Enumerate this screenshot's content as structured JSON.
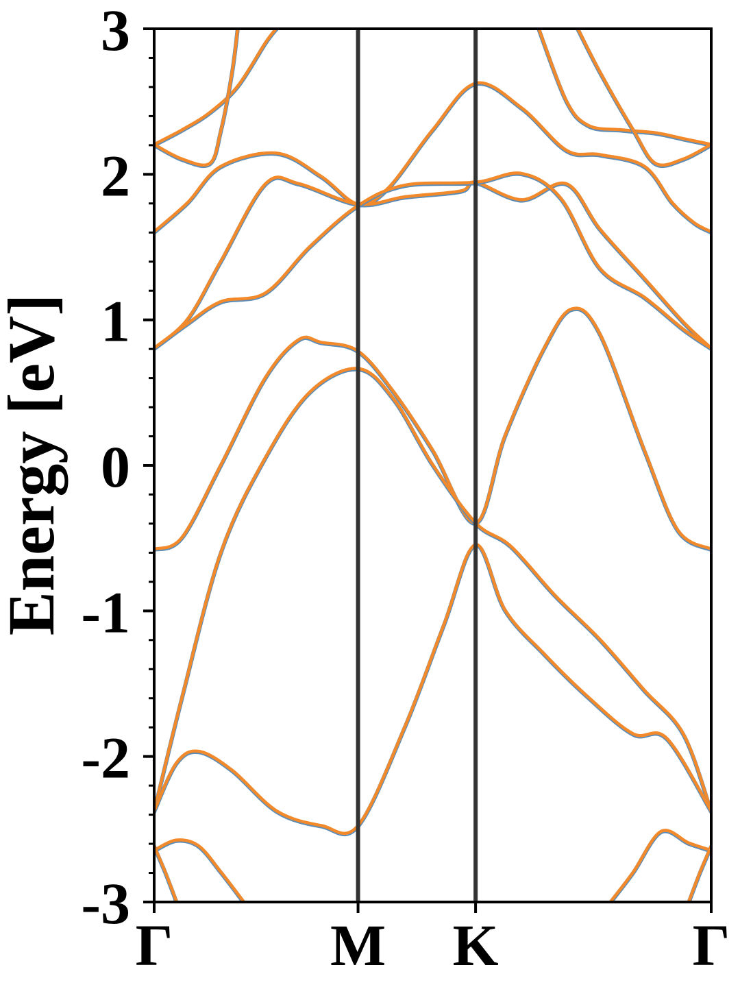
{
  "chart_data": {
    "type": "line",
    "title": "",
    "xlabel": "",
    "ylabel": "Energy [eV]",
    "ylim": [
      -3,
      3
    ],
    "xlim": [
      0,
      1
    ],
    "x_ticks": [
      {
        "label": "Γ",
        "x": 0.0
      },
      {
        "label": "M",
        "x": 0.366
      },
      {
        "label": "K",
        "x": 0.577
      },
      {
        "label": "Γ",
        "x": 1.0
      }
    ],
    "y_ticks": [
      {
        "label": "-3",
        "value": -3
      },
      {
        "label": "-2",
        "value": -2
      },
      {
        "label": "-1",
        "value": -1
      },
      {
        "label": "0",
        "value": 0
      },
      {
        "label": "1",
        "value": 1
      },
      {
        "label": "2",
        "value": 2
      },
      {
        "label": "3",
        "value": 3
      }
    ],
    "y_minor_step": 0.2,
    "symmetry_lines": [
      0.366,
      0.577
    ],
    "grid": false,
    "legend": "none",
    "colors": {
      "primary": "#5b8db8",
      "overlay": "#f28a2c",
      "vline": "#333333"
    },
    "series": [
      {
        "points": [
          [
            0,
            2.2
          ],
          [
            0.05,
            2.3
          ],
          [
            0.1,
            2.42
          ],
          [
            0.15,
            2.6
          ],
          [
            0.2,
            2.9
          ],
          [
            0.22,
            3.0
          ]
        ]
      },
      {
        "points": [
          [
            0,
            2.2
          ],
          [
            0.05,
            2.1
          ],
          [
            0.1,
            2.07
          ],
          [
            0.12,
            2.3
          ],
          [
            0.14,
            2.7
          ],
          [
            0.15,
            3.0
          ]
        ]
      },
      {
        "points": [
          [
            0,
            1.6
          ],
          [
            0.06,
            1.8
          ],
          [
            0.12,
            2.05
          ],
          [
            0.22,
            2.14
          ],
          [
            0.3,
            1.98
          ],
          [
            0.366,
            1.79
          ],
          [
            0.42,
            1.9
          ],
          [
            0.5,
            2.3
          ],
          [
            0.577,
            2.62
          ],
          [
            0.66,
            2.45
          ],
          [
            0.74,
            2.16
          ],
          [
            0.8,
            2.13
          ],
          [
            0.88,
            2.05
          ],
          [
            0.93,
            1.8
          ],
          [
            0.97,
            1.66
          ],
          [
            1.0,
            1.6
          ]
        ]
      },
      {
        "points": [
          [
            0,
            0.8
          ],
          [
            0.06,
            1.0
          ],
          [
            0.12,
            1.4
          ],
          [
            0.2,
            1.93
          ],
          [
            0.26,
            1.93
          ],
          [
            0.366,
            1.79
          ],
          [
            0.45,
            1.84
          ],
          [
            0.55,
            1.88
          ],
          [
            0.577,
            1.94
          ],
          [
            0.66,
            1.82
          ],
          [
            0.74,
            1.93
          ],
          [
            0.8,
            1.62
          ],
          [
            0.88,
            1.28
          ],
          [
            0.95,
            0.98
          ],
          [
            1.0,
            0.8
          ]
        ]
      },
      {
        "points": [
          [
            0,
            0.8
          ],
          [
            0.06,
            0.97
          ],
          [
            0.12,
            1.12
          ],
          [
            0.2,
            1.18
          ],
          [
            0.28,
            1.5
          ],
          [
            0.366,
            1.78
          ],
          [
            0.45,
            1.92
          ],
          [
            0.577,
            1.94
          ],
          [
            0.66,
            2.0
          ],
          [
            0.73,
            1.83
          ],
          [
            0.8,
            1.35
          ],
          [
            0.88,
            1.15
          ],
          [
            0.95,
            0.93
          ],
          [
            1.0,
            0.8
          ]
        ]
      },
      {
        "points": [
          [
            0,
            -0.58
          ],
          [
            0.05,
            -0.5
          ],
          [
            0.12,
            0.0
          ],
          [
            0.2,
            0.6
          ],
          [
            0.26,
            0.86
          ],
          [
            0.3,
            0.84
          ],
          [
            0.366,
            0.78
          ],
          [
            0.43,
            0.5
          ],
          [
            0.5,
            0.1
          ],
          [
            0.577,
            -0.4
          ],
          [
            0.63,
            0.2
          ],
          [
            0.7,
            0.8
          ],
          [
            0.75,
            1.07
          ],
          [
            0.8,
            0.9
          ],
          [
            0.88,
            0.1
          ],
          [
            0.94,
            -0.45
          ],
          [
            1.0,
            -0.58
          ]
        ]
      },
      {
        "points": [
          [
            0,
            -2.38
          ],
          [
            0.05,
            -1.6
          ],
          [
            0.12,
            -0.6
          ],
          [
            0.2,
            0.05
          ],
          [
            0.28,
            0.5
          ],
          [
            0.366,
            0.66
          ],
          [
            0.43,
            0.45
          ],
          [
            0.5,
            0.0
          ],
          [
            0.577,
            -0.4
          ],
          [
            0.64,
            -0.56
          ],
          [
            0.72,
            -0.9
          ],
          [
            0.8,
            -1.2
          ],
          [
            0.88,
            -1.55
          ],
          [
            0.95,
            -1.85
          ],
          [
            1.0,
            -2.38
          ]
        ]
      },
      {
        "points": [
          [
            0,
            -2.38
          ],
          [
            0.04,
            -2.05
          ],
          [
            0.08,
            -1.97
          ],
          [
            0.14,
            -2.1
          ],
          [
            0.22,
            -2.38
          ],
          [
            0.3,
            -2.48
          ],
          [
            0.366,
            -2.48
          ],
          [
            0.45,
            -1.8
          ],
          [
            0.52,
            -1.1
          ],
          [
            0.577,
            -0.55
          ],
          [
            0.63,
            -1.0
          ],
          [
            0.7,
            -1.3
          ],
          [
            0.78,
            -1.6
          ],
          [
            0.86,
            -1.85
          ],
          [
            0.92,
            -1.88
          ],
          [
            1.0,
            -2.38
          ]
        ]
      },
      {
        "points": [
          [
            0,
            -2.65
          ],
          [
            0.04,
            -2.58
          ],
          [
            0.08,
            -2.62
          ],
          [
            0.12,
            -2.8
          ],
          [
            0.16,
            -3.0
          ]
        ]
      },
      {
        "points": [
          [
            0,
            -2.62
          ],
          [
            0.02,
            -2.8
          ],
          [
            0.04,
            -3.0
          ]
        ]
      },
      {
        "points": [
          [
            0.82,
            -3.0
          ],
          [
            0.86,
            -2.8
          ],
          [
            0.91,
            -2.52
          ],
          [
            0.96,
            -2.6
          ],
          [
            1.0,
            -2.65
          ]
        ]
      },
      {
        "points": [
          [
            0.96,
            -3.0
          ],
          [
            0.98,
            -2.8
          ],
          [
            1.0,
            -2.62
          ]
        ]
      },
      {
        "points": [
          [
            0.69,
            3.0
          ],
          [
            0.74,
            2.5
          ],
          [
            0.78,
            2.33
          ],
          [
            0.84,
            2.3
          ],
          [
            0.9,
            2.28
          ],
          [
            0.95,
            2.24
          ],
          [
            1.0,
            2.2
          ]
        ]
      },
      {
        "points": [
          [
            0.76,
            3.0
          ],
          [
            0.8,
            2.7
          ],
          [
            0.86,
            2.3
          ],
          [
            0.9,
            2.07
          ],
          [
            0.95,
            2.1
          ],
          [
            1.0,
            2.2
          ]
        ]
      }
    ]
  }
}
